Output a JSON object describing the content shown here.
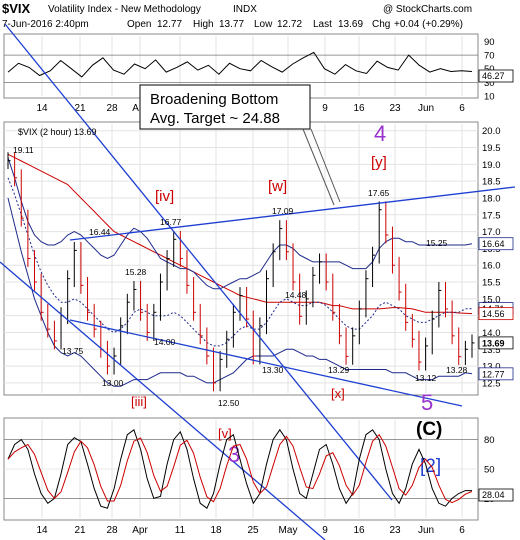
{
  "header": {
    "symbol": "$VIX",
    "name": "Volatility Index - New Methodology",
    "exchange": "INDX",
    "copyright": "@ StockCharts.com",
    "datetime": "7-Jun-2016 2:40pm",
    "open_label": "Open",
    "open": "12.77",
    "high_label": "High",
    "high": "13.77",
    "low_label": "Low",
    "low": "12.72",
    "last_label": "Last",
    "last": "13.69",
    "chg_label": "Chg",
    "chg": "+0.04 (+0.29%)"
  },
  "chart_data": [
    {
      "type": "line",
      "panel": "top-indicator",
      "series": [
        {
          "values": [
            45,
            58,
            52,
            40,
            47,
            62,
            50,
            38,
            55,
            66,
            48,
            42,
            57,
            50,
            63,
            45,
            52,
            60,
            48,
            55,
            42,
            58,
            50,
            47,
            62,
            53,
            45,
            57,
            66,
            74,
            50,
            42,
            56,
            47,
            43,
            61,
            52,
            48,
            70,
            55,
            45,
            50,
            46,
            47,
            46
          ]
        }
      ],
      "ylim": [
        10,
        98
      ],
      "reference_lines": [
        70,
        30
      ],
      "tick_labels": [
        "90",
        "70",
        "50",
        "30",
        "10"
      ],
      "last_label": "46.27"
    },
    {
      "type": "line",
      "panel": "main",
      "legend": "$VIX (2 hour) 13.69",
      "x_tick_labels": [
        "14",
        "21",
        "28",
        "Apr",
        "11",
        "18",
        "25",
        "May",
        "9",
        "16",
        "23",
        "Jun",
        "6"
      ],
      "y_tick_labels": [
        "20.0",
        "19.5",
        "19.0",
        "18.5",
        "18.0",
        "17.5",
        "17.0",
        "16.5",
        "16.0",
        "15.5",
        "15.0",
        "14.5",
        "14.0",
        "13.5",
        "13.0",
        "12.5"
      ],
      "ylim": [
        12.2,
        20.2
      ],
      "series": [
        {
          "name": "price",
          "values": [
            19.11,
            18.6,
            17.4,
            16.2,
            15.5,
            14.6,
            14.1,
            13.75,
            14.5,
            15.6,
            16.44,
            15.4,
            14.6,
            14.1,
            13.5,
            13.0,
            13.3,
            14.2,
            14.9,
            15.28,
            14.6,
            14.0,
            14.6,
            15.5,
            16.2,
            16.77,
            16.2,
            15.4,
            14.6,
            13.9,
            13.3,
            12.5,
            13.2,
            13.8,
            14.6,
            15.1,
            14.4,
            13.3,
            14.2,
            15.6,
            16.4,
            17.09,
            16.4,
            15.5,
            14.48,
            15.0,
            15.7,
            16.1,
            15.5,
            14.6,
            13.9,
            13.29,
            13.9,
            14.7,
            15.6,
            16.3,
            17.65,
            16.9,
            16.0,
            15.2,
            14.3,
            13.8,
            13.12,
            13.6,
            14.4,
            15.25,
            14.7,
            13.9,
            13.28,
            13.5,
            13.69
          ]
        },
        {
          "name": "upper-band",
          "values": [
            19.2,
            18.6,
            17.9,
            17.3,
            16.9,
            16.7,
            16.6,
            16.6,
            16.7,
            16.9,
            17.0,
            16.9,
            16.7,
            16.5,
            16.3,
            16.2,
            16.3,
            16.6,
            16.9,
            17.1,
            17.0,
            16.8,
            16.5,
            16.2,
            16.1,
            16.0,
            15.9,
            15.9,
            15.8,
            15.6,
            15.4,
            15.3,
            15.3,
            15.4,
            15.5,
            15.6,
            15.6,
            15.7,
            15.8,
            16.1,
            16.4,
            16.6,
            16.6,
            16.5,
            16.3,
            16.2,
            16.1,
            16.1,
            16.1,
            16.1,
            16.1,
            16.0,
            15.9,
            15.9,
            15.9,
            16.1,
            16.5,
            16.7,
            16.8,
            16.8,
            16.7,
            16.7,
            16.6,
            16.6,
            16.6,
            16.6,
            16.6,
            16.6,
            16.6,
            16.6,
            16.64
          ]
        },
        {
          "name": "lower-band",
          "values": [
            18.0,
            17.2,
            16.4,
            15.7,
            15.0,
            14.5,
            14.0,
            13.6,
            13.4,
            13.3,
            13.4,
            13.3,
            13.1,
            12.9,
            12.7,
            12.5,
            12.4,
            12.4,
            12.5,
            12.6,
            12.6,
            12.6,
            12.7,
            12.8,
            12.8,
            12.8,
            12.8,
            12.7,
            12.7,
            12.6,
            12.5,
            12.5,
            12.6,
            12.7,
            12.8,
            13.0,
            13.2,
            13.3,
            13.3,
            13.3,
            13.3,
            13.4,
            13.5,
            13.5,
            13.4,
            13.3,
            13.3,
            13.2,
            13.2,
            13.1,
            13.0,
            12.9,
            12.9,
            12.9,
            12.9,
            12.9,
            12.9,
            12.9,
            12.8,
            12.8,
            12.8,
            12.7,
            12.6,
            12.6,
            12.6,
            12.7,
            12.7,
            12.7,
            12.7,
            12.8,
            12.77
          ]
        },
        {
          "name": "ma-dotted",
          "values": [
            18.6,
            18.1,
            17.5,
            16.9,
            16.3,
            15.8,
            15.4,
            15.1,
            14.9,
            14.9,
            15.0,
            14.9,
            14.7,
            14.5,
            14.3,
            14.1,
            14.0,
            14.1,
            14.3,
            14.6,
            14.7,
            14.6,
            14.5,
            14.5,
            14.5,
            14.6,
            14.5,
            14.3,
            14.1,
            13.9,
            13.7,
            13.6,
            13.6,
            13.7,
            13.9,
            14.1,
            14.2,
            14.1,
            14.1,
            14.3,
            14.6,
            14.9,
            15.0,
            14.9,
            14.8,
            14.8,
            14.9,
            14.9,
            14.8,
            14.6,
            14.4,
            14.2,
            14.1,
            14.1,
            14.3,
            14.5,
            14.8,
            14.9,
            14.8,
            14.7,
            14.5,
            14.4,
            14.3,
            14.3,
            14.4,
            14.5,
            14.6,
            14.6,
            14.6,
            14.7,
            14.71
          ]
        },
        {
          "name": "ma-red",
          "values": [
            19.3,
            19.2,
            19.1,
            19.0,
            18.9,
            18.8,
            18.7,
            18.6,
            18.5,
            18.4,
            18.2,
            18.0,
            17.8,
            17.6,
            17.4,
            17.2,
            17.0,
            16.9,
            16.8,
            16.7,
            16.6,
            16.5,
            16.4,
            16.3,
            16.2,
            16.1,
            16.0,
            15.9,
            15.8,
            15.7,
            15.6,
            15.5,
            15.4,
            15.3,
            15.2,
            15.1,
            15.05,
            15.0,
            14.95,
            14.9,
            14.9,
            14.9,
            14.9,
            14.9,
            14.9,
            14.9,
            14.9,
            14.9,
            14.85,
            14.8,
            14.8,
            14.75,
            14.7,
            14.7,
            14.7,
            14.7,
            14.7,
            14.72,
            14.74,
            14.74,
            14.72,
            14.7,
            14.65,
            14.6,
            14.6,
            14.6,
            14.6,
            14.6,
            14.58,
            14.57,
            14.56
          ]
        }
      ],
      "price_labels": [
        "19.11",
        "16.44",
        "13.75",
        "15.28",
        "13.00",
        "14.00",
        "16.77",
        "12.50",
        "13.30",
        "17.09",
        "14.48",
        "13.29",
        "17.65",
        "15.25",
        "13.12",
        "13.28"
      ],
      "wave_labels": [
        "[iv]",
        "[iii]",
        "[v]",
        "3",
        "[w]",
        "[x]",
        "4",
        "[y]",
        "5",
        "(C)",
        "[2]"
      ],
      "right_value_labels": [
        "16.64",
        "14.71",
        "14.56",
        "13.69",
        "12.77"
      ],
      "annotation": {
        "line1": "Broadening Bottom",
        "line2": "Avg. Target ~ 24.88"
      }
    },
    {
      "type": "line",
      "panel": "bottom-oscillator",
      "series": [
        {
          "values": [
            60,
            75,
            80,
            70,
            45,
            25,
            15,
            20,
            45,
            75,
            82,
            78,
            55,
            30,
            12,
            10,
            30,
            60,
            85,
            90,
            70,
            40,
            20,
            22,
            55,
            80,
            88,
            70,
            40,
            15,
            10,
            25,
            55,
            80,
            85,
            60,
            35,
            15,
            25,
            55,
            80,
            90,
            80,
            50,
            25,
            20,
            45,
            70,
            75,
            55,
            30,
            15,
            25,
            60,
            85,
            90,
            80,
            50,
            25,
            15,
            30,
            55,
            70,
            55,
            30,
            15,
            12,
            20,
            25,
            28,
            28
          ]
        }
      ],
      "ylim": [
        0,
        100
      ],
      "reference_lines": [
        80,
        20
      ],
      "tick_labels": [
        "80",
        "50",
        "20"
      ],
      "last_label": "28.04"
    }
  ]
}
